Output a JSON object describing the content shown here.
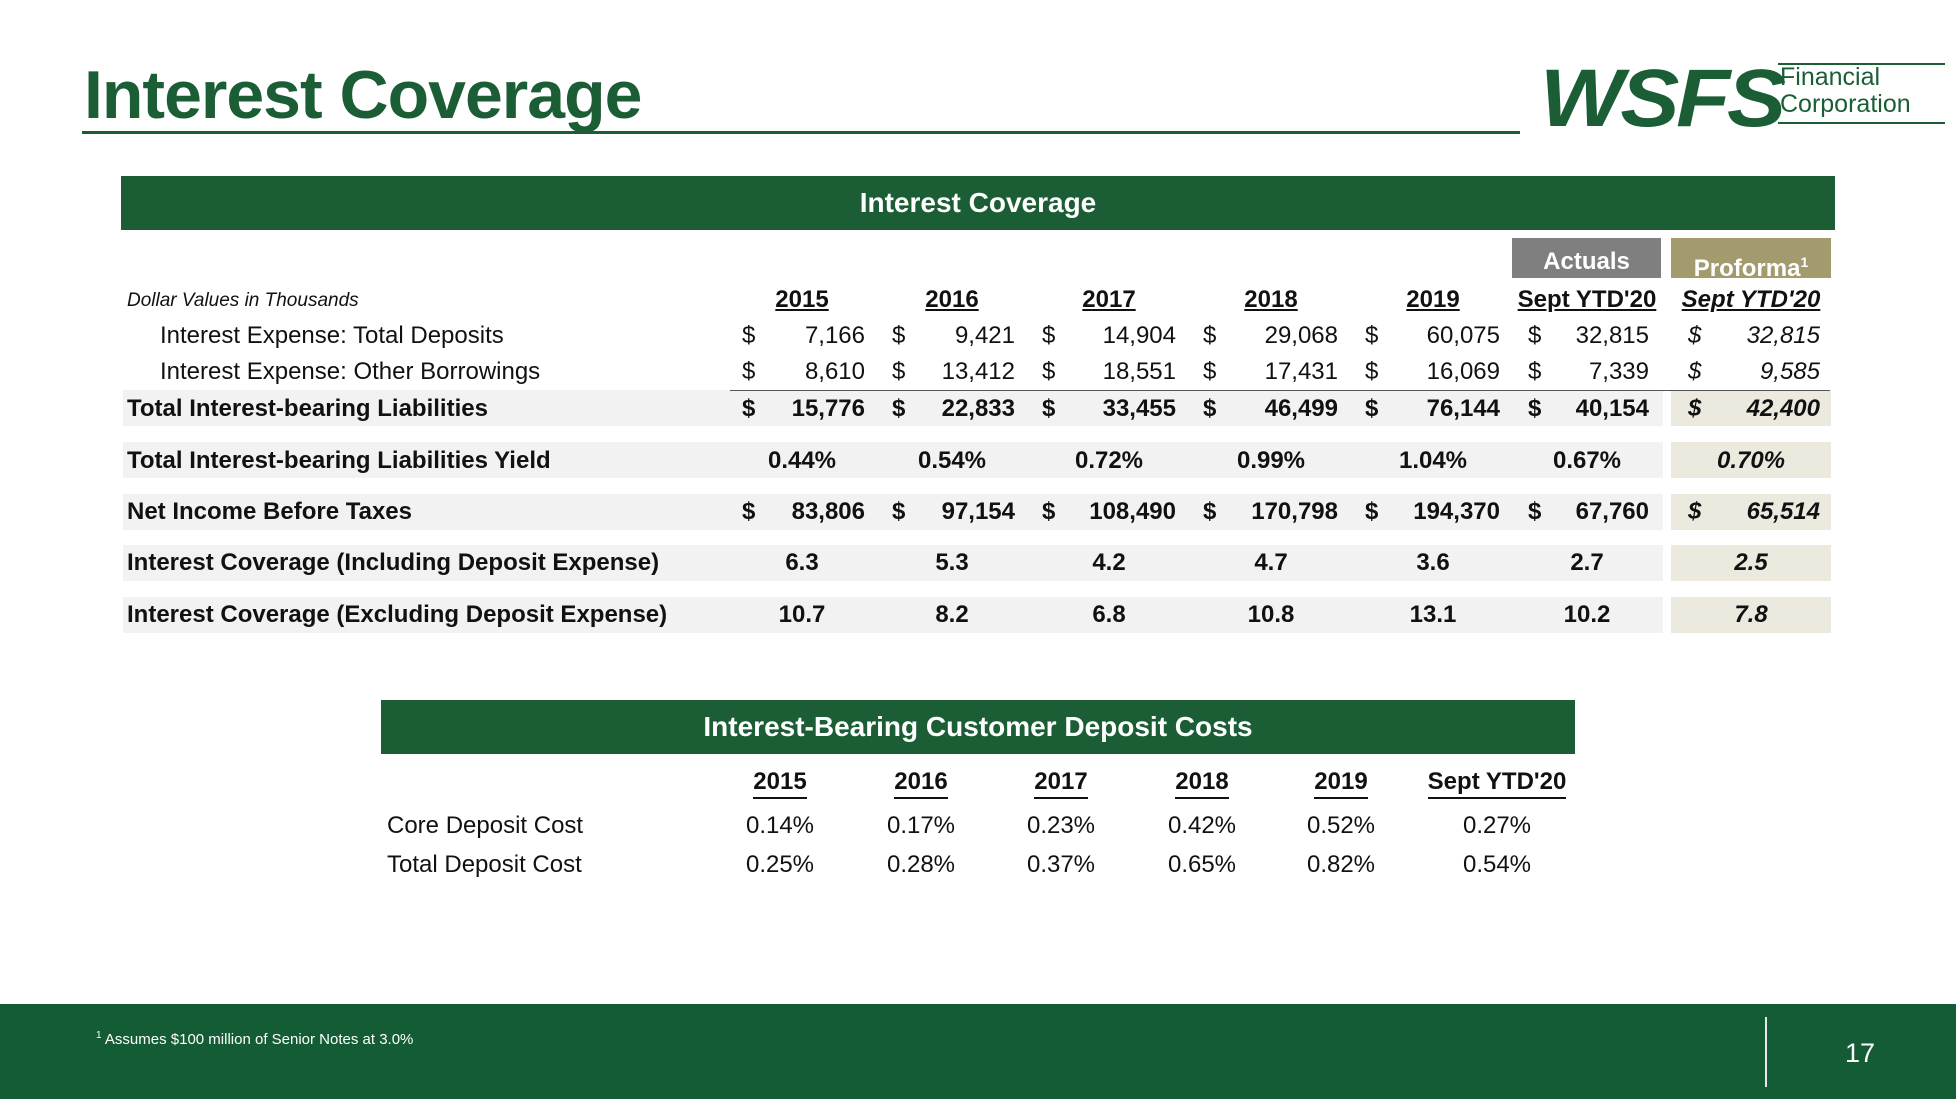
{
  "page_title": "Interest Coverage",
  "logo": {
    "word": "WSFS",
    "line1": "Financial",
    "line2": "Corporation"
  },
  "coverage_table": {
    "title": "Interest Coverage",
    "actuals_label": "Actuals",
    "proforma_label": "Proforma",
    "proforma_sup": "1",
    "subtitle": "Dollar Values in Thousands",
    "years": [
      "2015",
      "2016",
      "2017",
      "2018",
      "2019",
      "Sept YTD'20",
      "Sept YTD'20"
    ],
    "rows": [
      {
        "label": "Interest Expense: Total Deposits",
        "values": [
          "7,166",
          "9,421",
          "14,904",
          "29,068",
          "60,075",
          "32,815",
          "32,815"
        ]
      },
      {
        "label": "Interest Expense: Other Borrowings",
        "values": [
          "8,610",
          "13,412",
          "18,551",
          "17,431",
          "16,069",
          "7,339",
          "9,585"
        ]
      },
      {
        "label": "Total Interest-bearing Liabilities",
        "values": [
          "15,776",
          "22,833",
          "33,455",
          "46,499",
          "76,144",
          "40,154",
          "42,400"
        ]
      },
      {
        "label": "Total Interest-bearing Liabilities Yield",
        "values": [
          "0.44%",
          "0.54%",
          "0.72%",
          "0.99%",
          "1.04%",
          "0.67%",
          "0.70%"
        ]
      },
      {
        "label": "Net Income Before Taxes",
        "values": [
          "83,806",
          "97,154",
          "108,490",
          "170,798",
          "194,370",
          "67,760",
          "65,514"
        ]
      },
      {
        "label": "Interest Coverage (Including Deposit Expense)",
        "values": [
          "6.3",
          "5.3",
          "4.2",
          "4.7",
          "3.6",
          "2.7",
          "2.5"
        ]
      },
      {
        "label": "Interest Coverage (Excluding Deposit Expense)",
        "values": [
          "10.7",
          "8.2",
          "6.8",
          "10.8",
          "13.1",
          "10.2",
          "7.8"
        ]
      }
    ],
    "currency_symbol": "$"
  },
  "deposit_table": {
    "title": "Interest-Bearing Customer Deposit Costs",
    "years": [
      "2015",
      "2016",
      "2017",
      "2018",
      "2019",
      "Sept YTD'20"
    ],
    "rows": [
      {
        "label": "Core Deposit Cost",
        "values": [
          "0.14%",
          "0.17%",
          "0.23%",
          "0.42%",
          "0.52%",
          "0.27%"
        ]
      },
      {
        "label": "Total Deposit Cost",
        "values": [
          "0.25%",
          "0.28%",
          "0.37%",
          "0.65%",
          "0.82%",
          "0.54%"
        ]
      }
    ]
  },
  "footer": {
    "note_sup": "1",
    "note": "Assumes $100 million of Senior Notes at 3.0%",
    "page_number": "17"
  }
}
